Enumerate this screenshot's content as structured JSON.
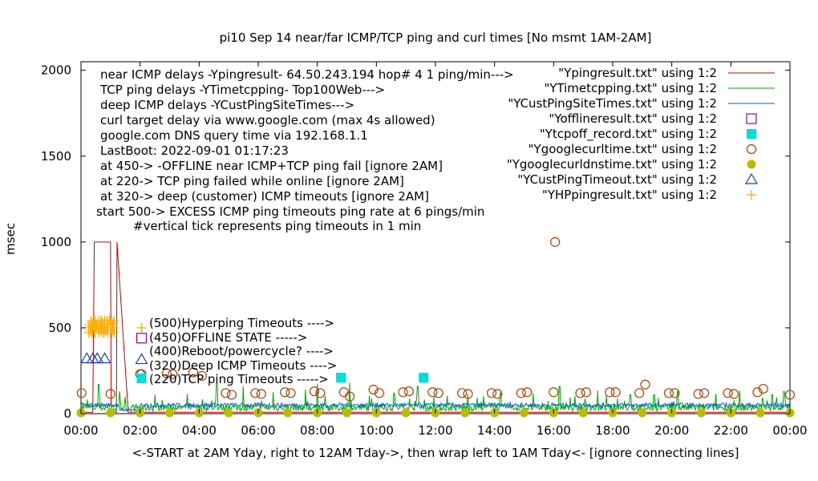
{
  "chart_data": {
    "type": "line",
    "title": "pi10 Sep 14  near/far ICMP/TCP ping and curl times [No msmt 1AM-2AM]",
    "ylabel": "msec",
    "xlabel": "<-START at 2AM Yday, right to 12AM Tday->, then wrap left to 1AM Tday<- [ignore connecting lines]",
    "ylim": [
      0,
      2050
    ],
    "xlim": [
      0,
      24
    ],
    "y_ticks": [
      "0",
      "500",
      "1000",
      "1500",
      "2000"
    ],
    "y_tick_values": [
      0,
      500,
      1000,
      1500,
      2000
    ],
    "x_ticks": [
      "00:00",
      "02:00",
      "04:00",
      "06:00",
      "08:00",
      "10:00",
      "12:00",
      "14:00",
      "16:00",
      "18:00",
      "20:00",
      "22:00",
      "00:00"
    ],
    "x_tick_values": [
      0,
      2,
      4,
      6,
      8,
      10,
      12,
      14,
      16,
      18,
      20,
      22,
      24
    ],
    "annotations_top": [
      "near ICMP delays -Ypingresult- 64.50.243.194 hop# 4 1 ping/min--->",
      "TCP ping delays -YTimetcpping- Top100Web--->",
      "deep ICMP delays -YCustPingSiteTimes--->",
      "curl target delay via www.google.com (max 4s allowed)",
      "google.com DNS query time via 192.168.1.1",
      "LastBoot: 2022-09-01 01:17:23",
      "at 450-> -OFFLINE near ICMP+TCP ping fail [ignore 2AM]",
      "at 220-> TCP ping failed while online [ignore 2AM]",
      "at 320-> deep (customer) ICMP timeouts [ignore 2AM]",
      "start 500-> EXCESS ICMP ping timeouts ping rate at 6 pings/min",
      "#vertical tick represents ping timeouts in 1 min"
    ],
    "annotations_key": [
      "(500)Hyperping Timeouts ---->",
      "(450)OFFLINE STATE ----->",
      "(400)Reboot/powercycle? ---->",
      "(320)Deep ICMP Timeouts ---->",
      "(220)TCP ping Timeouts ----->"
    ],
    "legend_position": "top-right",
    "series": [
      {
        "name": "\"Ypingresult.txt\" using 1:2",
        "style": "line",
        "color": "#cc0000",
        "x": [
          0.1,
          0.4,
          0.45,
          0.5,
          1.0,
          1.02,
          1.2,
          1.22,
          1.6,
          2,
          3,
          4,
          5,
          6,
          7,
          8,
          9,
          10,
          11,
          12,
          13,
          14,
          15,
          16,
          17,
          18,
          19,
          20,
          21,
          22,
          23,
          24
        ],
        "y": [
          8,
          8,
          1000,
          1000,
          1000,
          8,
          8,
          1000,
          8,
          8,
          8,
          8,
          8,
          8,
          8,
          8,
          8,
          8,
          8,
          8,
          8,
          8,
          8,
          8,
          8,
          8,
          8,
          8,
          8,
          8,
          8,
          8
        ]
      },
      {
        "name": "\"YTimetcpping.txt\" using 1:2",
        "style": "line",
        "color": "#00aa00",
        "baseline": 35,
        "spikes": [
          [
            0.6,
            170
          ],
          [
            1.3,
            130
          ],
          [
            2.5,
            110
          ],
          [
            3.6,
            115
          ],
          [
            4.6,
            180
          ],
          [
            5.5,
            160
          ],
          [
            6.5,
            125
          ],
          [
            7.6,
            140
          ],
          [
            8.0,
            175
          ],
          [
            9.1,
            180
          ],
          [
            10.6,
            120
          ],
          [
            11.4,
            160
          ],
          [
            12.4,
            105
          ],
          [
            13.1,
            115
          ],
          [
            14.2,
            120
          ],
          [
            15.3,
            120
          ],
          [
            16.2,
            160
          ],
          [
            17.5,
            135
          ],
          [
            18.6,
            110
          ],
          [
            19.4,
            110
          ],
          [
            20.2,
            130
          ],
          [
            21.5,
            115
          ],
          [
            22.3,
            135
          ],
          [
            23.4,
            110
          ],
          [
            23.8,
            130
          ]
        ]
      },
      {
        "name": "\"YCustPingSiteTimes.txt\" using 1:2",
        "style": "line",
        "color": "#0066cc",
        "baseline": 50
      },
      {
        "name": "\"Yofflineresult.txt\" using 1:2",
        "style": "open-square",
        "color": "#9900aa",
        "x": [],
        "y": []
      },
      {
        "name": "\"Ytcpoff_record.txt\" using 1:2",
        "style": "filled-square",
        "color": "#00dddd",
        "x": [
          8.8,
          11.6
        ],
        "y": [
          210,
          210
        ]
      },
      {
        "name": "\"Ygooglecurltime.txt\" using 1:2",
        "style": "open-circle",
        "color": "#b04000",
        "x": [
          0.02,
          1.0,
          2.0,
          2.9,
          3.1,
          3.8,
          4.1,
          4.9,
          5.1,
          5.9,
          6.1,
          6.9,
          7.1,
          7.9,
          8.1,
          8.9,
          9.1,
          9.9,
          10.1,
          10.9,
          11.1,
          11.9,
          12.1,
          12.9,
          13.1,
          13.9,
          14.1,
          14.9,
          15.1,
          16.0,
          16.05,
          16.9,
          17.1,
          17.9,
          18.1,
          18.9,
          19.1,
          19.9,
          20.1,
          20.9,
          21.1,
          21.9,
          22.1,
          22.9,
          23.1,
          24.0
        ],
        "y": [
          120,
          115,
          230,
          235,
          230,
          240,
          220,
          120,
          110,
          120,
          115,
          125,
          120,
          130,
          120,
          125,
          100,
          140,
          120,
          125,
          130,
          125,
          120,
          120,
          115,
          120,
          115,
          120,
          125,
          125,
          1000,
          120,
          125,
          125,
          125,
          120,
          170,
          120,
          120,
          115,
          120,
          120,
          115,
          125,
          145,
          110
        ]
      },
      {
        "name": "\"Ygooglecurldnstime.txt\" using 1:2",
        "style": "filled-circle",
        "color": "#bbbb00",
        "x": [
          0,
          1,
          2,
          3,
          4,
          5,
          6,
          7,
          8,
          9,
          10,
          11,
          12,
          13,
          14,
          15,
          16,
          17,
          18,
          19,
          20,
          21,
          22,
          23,
          24
        ],
        "y": [
          5,
          5,
          5,
          5,
          5,
          5,
          5,
          5,
          5,
          5,
          5,
          5,
          5,
          5,
          5,
          5,
          5,
          5,
          5,
          5,
          5,
          5,
          5,
          5,
          5
        ]
      },
      {
        "name": "\"YCustPingTimeout.txt\" using 1:2",
        "style": "open-triangle",
        "color": "#1144bb",
        "x": [
          0.2,
          0.4,
          0.55,
          0.8
        ],
        "y": [
          320,
          320,
          320,
          320
        ]
      },
      {
        "name": "\"YHPpingresult.txt\" using 1:2",
        "style": "plus",
        "color": "#ffaa00",
        "x": [
          0.3,
          0.4,
          0.5,
          0.6,
          0.7,
          0.8,
          0.9,
          1.0,
          1.1
        ],
        "y": [
          500,
          500,
          500,
          500,
          500,
          500,
          500,
          500,
          500
        ]
      }
    ],
    "key_markers": [
      {
        "style": "plus",
        "color": "#ffaa00",
        "x": 2.05,
        "y": 500
      },
      {
        "style": "open-square",
        "color": "#9900aa",
        "x": 2.05,
        "y": 440
      },
      {
        "style": "open-circle",
        "color": "#b04000",
        "x": 2.05,
        "y": 230
      },
      {
        "style": "open-triangle",
        "color": "#1144bb",
        "x": 2.05,
        "y": 315
      },
      {
        "style": "filled-square",
        "color": "#00dddd",
        "x": 2.05,
        "y": 205
      }
    ]
  }
}
